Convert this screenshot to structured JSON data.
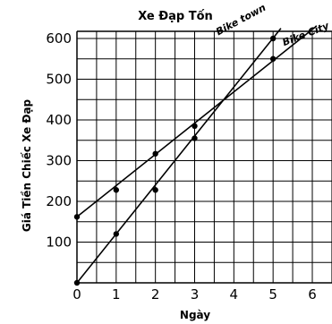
{
  "chart_data": {
    "type": "line",
    "title": "Xe Đạp Tốn",
    "xlabel": "Ngày",
    "ylabel": "Giá Tiền Chiếc Xe Đạp",
    "xlim": [
      0,
      6
    ],
    "ylim": [
      0,
      600
    ],
    "x_ticks": [
      "0",
      "1",
      "2",
      "3",
      "4",
      "5",
      "6"
    ],
    "y_ticks": [
      "100",
      "200",
      "300",
      "400",
      "500",
      "600"
    ],
    "grid": true,
    "series": [
      {
        "name": "Bike town",
        "points": [
          {
            "x": 0,
            "y": 0
          },
          {
            "x": 1,
            "y": 120
          },
          {
            "x": 2,
            "y": 228
          },
          {
            "x": 3,
            "y": 355
          },
          {
            "x": 5,
            "y": 600
          }
        ],
        "line": {
          "x0": 0,
          "y0": 0,
          "x1": 5.2,
          "y1": 625
        }
      },
      {
        "name": "Bike City",
        "points": [
          {
            "x": 0,
            "y": 162
          },
          {
            "x": 1,
            "y": 228
          },
          {
            "x": 2,
            "y": 317
          },
          {
            "x": 3,
            "y": 385
          },
          {
            "x": 5,
            "y": 550
          }
        ],
        "line": {
          "x0": 0,
          "y0": 162,
          "x1": 6.1,
          "y1": 630
        }
      }
    ]
  }
}
